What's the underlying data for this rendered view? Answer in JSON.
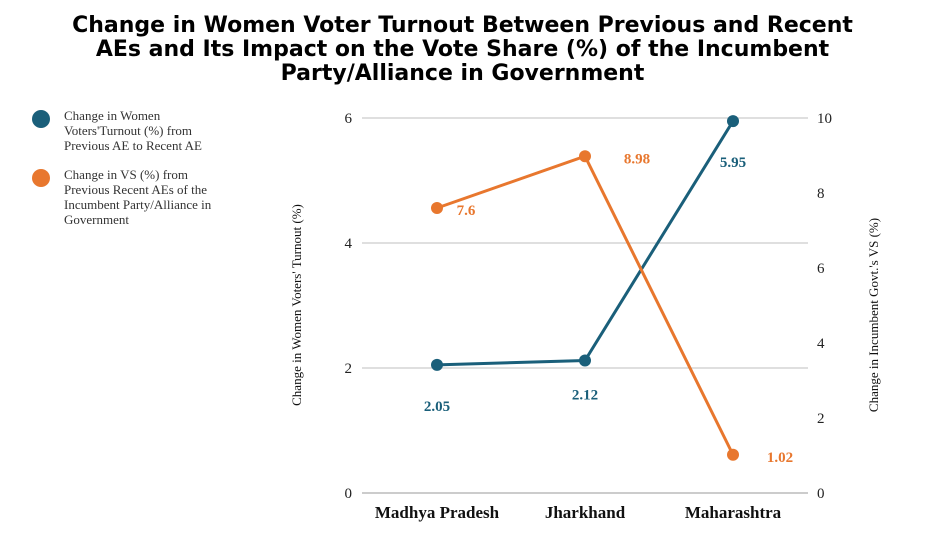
{
  "title_lines": [
    "Change in Women Voter Turnout Between Previous and Recent",
    "AEs and Its Impact on the Vote Share (%) of the Incumbent",
    "Party/Alliance in Government"
  ],
  "colors": {
    "women": "#1a5f7a",
    "vs": "#e8772e",
    "grid": "#bfbfbf"
  },
  "legend": [
    {
      "label": "Change in Women\nVoters'Turnout (%) from\nPrevious AE to Recent AE",
      "color": "#1a5f7a"
    },
    {
      "label": "Change in VS (%) from\nPrevious  Recent AEs of the\nIncumbent Party/Alliance in\nGovernment",
      "color": "#e8772e"
    }
  ],
  "chart_data": {
    "type": "line",
    "title": "Change in Women Voter Turnout Between Previous and Recent AEs and Its Impact on the Vote Share (%) of the Incumbent Party/Alliance in Government",
    "categories": [
      "Madhya Pradesh",
      "Jharkhand",
      "Maharashtra"
    ],
    "y_left_label": "Change in Women Voters' Turnout (%)",
    "y_right_label": "Change in Incumbent Govt.'s VS (%)",
    "y_left_lim": [
      0,
      6
    ],
    "y_left_ticks": [
      0,
      2,
      4,
      6
    ],
    "y_right_lim": [
      0,
      10
    ],
    "y_right_ticks": [
      0,
      2,
      4,
      6,
      8,
      10
    ],
    "grid": true,
    "legend_position": "left",
    "series": [
      {
        "name": "Change in Women Voters'Turnout (%) from Previous AE to Recent AE",
        "axis": "left",
        "values": [
          2.05,
          2.12,
          5.95
        ],
        "labels": [
          "2.05",
          "2.12",
          "5.95"
        ],
        "color": "#1a5f7a"
      },
      {
        "name": "Change in VS (%) from Previous  Recent AEs of the Incumbent Party/Alliance in Government",
        "axis": "right",
        "values": [
          7.6,
          8.98,
          1.02
        ],
        "labels": [
          "7.6",
          "8.98",
          "1.02"
        ],
        "color": "#e8772e"
      }
    ]
  }
}
